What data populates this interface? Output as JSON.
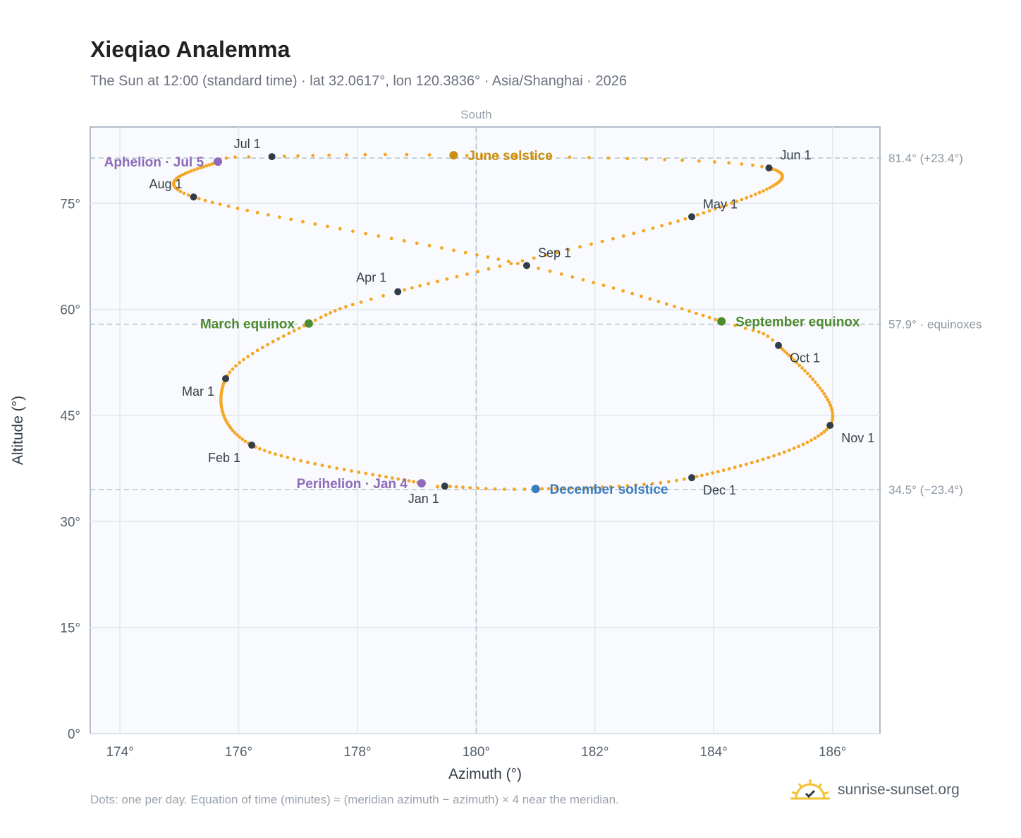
{
  "title": "Xieqiao Analemma",
  "subtitle": "The Sun at 12:00 (standard time) · lat 32.0617°, lon 120.3836° · Asia/Shanghai · 2026",
  "footnote": "Dots: one per day. Equation of time (minutes) ≈ (meridian azimuth − azimuth) × 4 near the meridian.",
  "brand": {
    "name": "sunrise-sunset.org",
    "icon": "sun-logo-icon"
  },
  "colors": {
    "path": "#f5a623",
    "month": "#333d47",
    "equinox": "#4e8a2e",
    "june": "#c98f10",
    "december": "#3a7cc0",
    "apsis": "#8e6bb8"
  },
  "chart_data": {
    "type": "scatter",
    "xlabel": "Azimuth (°)",
    "ylabel": "Altitude (°)",
    "xlim": [
      173.5,
      186.8
    ],
    "ylim": [
      0,
      85.8
    ],
    "xticks": [
      174,
      176,
      178,
      180,
      182,
      184,
      186
    ],
    "xtick_labels": [
      "174°",
      "176°",
      "178°",
      "180°",
      "182°",
      "184°",
      "186°"
    ],
    "yticks": [
      0,
      15,
      30,
      45,
      60,
      75
    ],
    "ytick_labels": [
      "0°",
      "15°",
      "30°",
      "45°",
      "60°",
      "75°"
    ],
    "grid": true,
    "meridian": {
      "x": 180,
      "label": "South"
    },
    "reference_lines": [
      {
        "y": 81.4,
        "label": "81.4° (+23.4°)"
      },
      {
        "y": 57.9,
        "label": "57.9° · equinoxes"
      },
      {
        "y": 34.5,
        "label": "34.5° (−23.4°)"
      }
    ],
    "path_series": "Daily noon sun (one dot per day)",
    "monthly": [
      {
        "label": "Jan 1",
        "doy": 1,
        "x": 179.47,
        "y": 35.0
      },
      {
        "label": "Feb 1",
        "doy": 32,
        "x": 176.22,
        "y": 40.8
      },
      {
        "label": "Mar 1",
        "doy": 60,
        "x": 175.78,
        "y": 50.2
      },
      {
        "label": "Apr 1",
        "doy": 91,
        "x": 178.68,
        "y": 62.5
      },
      {
        "label": "May 1",
        "doy": 121,
        "x": 183.63,
        "y": 73.1
      },
      {
        "label": "Jun 1",
        "doy": 152,
        "x": 184.93,
        "y": 80.0
      },
      {
        "label": "Jul 1",
        "doy": 182,
        "x": 176.56,
        "y": 81.6
      },
      {
        "label": "Aug 1",
        "doy": 213,
        "x": 175.24,
        "y": 75.9
      },
      {
        "label": "Sep 1",
        "doy": 244,
        "x": 180.85,
        "y": 66.2
      },
      {
        "label": "Oct 1",
        "doy": 274,
        "x": 185.09,
        "y": 54.9
      },
      {
        "label": "Nov 1",
        "doy": 305,
        "x": 185.96,
        "y": 43.6
      },
      {
        "label": "Dec 1",
        "doy": 335,
        "x": 183.63,
        "y": 36.2
      }
    ],
    "events": [
      {
        "label": "March equinox",
        "doy": 79,
        "x": 177.18,
        "y": 58.0,
        "kind": "equinox"
      },
      {
        "label": "June solstice",
        "doy": 172,
        "x": 179.62,
        "y": 81.8,
        "kind": "june"
      },
      {
        "label": "September equinox",
        "doy": 266,
        "x": 184.13,
        "y": 58.3,
        "kind": "equinox"
      },
      {
        "label": "December solstice",
        "doy": 355,
        "x": 181.0,
        "y": 34.6,
        "kind": "december"
      },
      {
        "label": "Perihelion · Jan 4",
        "doy": 4,
        "x": 179.08,
        "y": 35.4,
        "kind": "apsis"
      },
      {
        "label": "Aphelion · Jul 5",
        "doy": 186,
        "x": 175.65,
        "y": 80.9,
        "kind": "apsis"
      }
    ]
  }
}
